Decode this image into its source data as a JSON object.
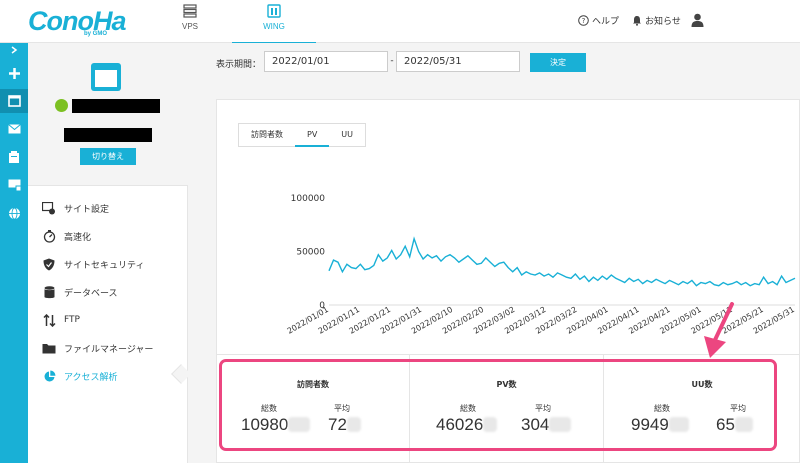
{
  "header": {
    "logo": "ConoHa",
    "logo_sub": "by GMO",
    "tabs": [
      {
        "label": "VPS",
        "icon": "server-stack-icon"
      },
      {
        "label": "WING",
        "icon": "wing-icon",
        "active": true
      }
    ],
    "help": "ヘルプ",
    "notice": "お知らせ"
  },
  "iconbar": [
    "chevron-right-icon",
    "plus-icon",
    "window-icon",
    "mail-icon",
    "database-icon",
    "dns-icon",
    "globe-icon"
  ],
  "sidebar": {
    "switch_label": "切り替え",
    "menu": [
      {
        "label": "サイト設定",
        "icon": "site-settings-icon"
      },
      {
        "label": "高速化",
        "icon": "speed-icon"
      },
      {
        "label": "サイトセキュリティ",
        "icon": "shield-icon"
      },
      {
        "label": "データベース",
        "icon": "database-icon"
      },
      {
        "label": "FTP",
        "icon": "ftp-arrows-icon"
      },
      {
        "label": "ファイルマネージャー",
        "icon": "folder-icon"
      },
      {
        "label": "アクセス解析",
        "icon": "pie-chart-icon",
        "active": true
      }
    ]
  },
  "filter": {
    "label": "表示期間：",
    "from": "2022/01/01",
    "to": "2022/05/31",
    "dash": "-",
    "submit": "決定"
  },
  "tabs": [
    {
      "label": "訪問者数"
    },
    {
      "label": "PV",
      "active": true
    },
    {
      "label": "UU"
    }
  ],
  "chart_data": {
    "type": "line",
    "accent": "#19b0d6",
    "ylim": [
      0,
      100000
    ],
    "yticks": [
      "100000",
      "50000",
      "0"
    ],
    "xticks": [
      "2022/01/01",
      "2022/01/11",
      "2022/01/21",
      "2022/01/31",
      "2022/02/10",
      "2022/02/20",
      "2022/03/02",
      "2022/03/12",
      "2022/03/22",
      "2022/04/01",
      "2022/04/11",
      "2022/04/21",
      "2022/05/01",
      "2022/05/11",
      "2022/05/21",
      "2022/05/31"
    ],
    "series": [
      {
        "values": [
          32000,
          42000,
          40000,
          31000,
          38000,
          35000,
          34000,
          38000,
          33000,
          34000,
          37000,
          47000,
          41000,
          44000,
          51000,
          43000,
          47000,
          55000,
          45000,
          62000,
          50000,
          43000,
          47000,
          44000,
          46000,
          41000,
          45000,
          47000,
          44000,
          40000,
          43000,
          46000,
          42000,
          38000,
          39000,
          44000,
          40000,
          36000,
          39000,
          40000,
          35000,
          31000,
          35000,
          28000,
          31000,
          29000,
          28000,
          30000,
          27000,
          29000,
          26000,
          30000,
          28000,
          26000,
          25000,
          29000,
          24000,
          27000,
          22000,
          26000,
          23000,
          27000,
          24000,
          28000,
          25000,
          23000,
          21000,
          25000,
          22000,
          24000,
          20000,
          23000,
          21000,
          24000,
          22000,
          20000,
          23000,
          21000,
          19000,
          22000,
          20000,
          23000,
          18000,
          21000,
          20000,
          22000,
          19000,
          18000,
          21000,
          19000,
          20000,
          22000,
          19000,
          21000,
          18000,
          20000,
          19000,
          26000,
          20000,
          22000,
          19000,
          27000,
          21000,
          23000,
          25000
        ]
      }
    ]
  },
  "stats": [
    {
      "title": "訪問者数",
      "total_label": "総数",
      "total": "10980",
      "avg_label": "平均",
      "avg": "72"
    },
    {
      "title": "PV数",
      "total_label": "総数",
      "total": "46026",
      "avg_label": "平均",
      "avg": "304"
    },
    {
      "title": "UU数",
      "total_label": "総数",
      "total": "9949",
      "avg_label": "平均",
      "avg": "65"
    }
  ],
  "colors": {
    "accent": "#19b0d6",
    "highlight": "#ec4680",
    "power": "#7cc022"
  }
}
